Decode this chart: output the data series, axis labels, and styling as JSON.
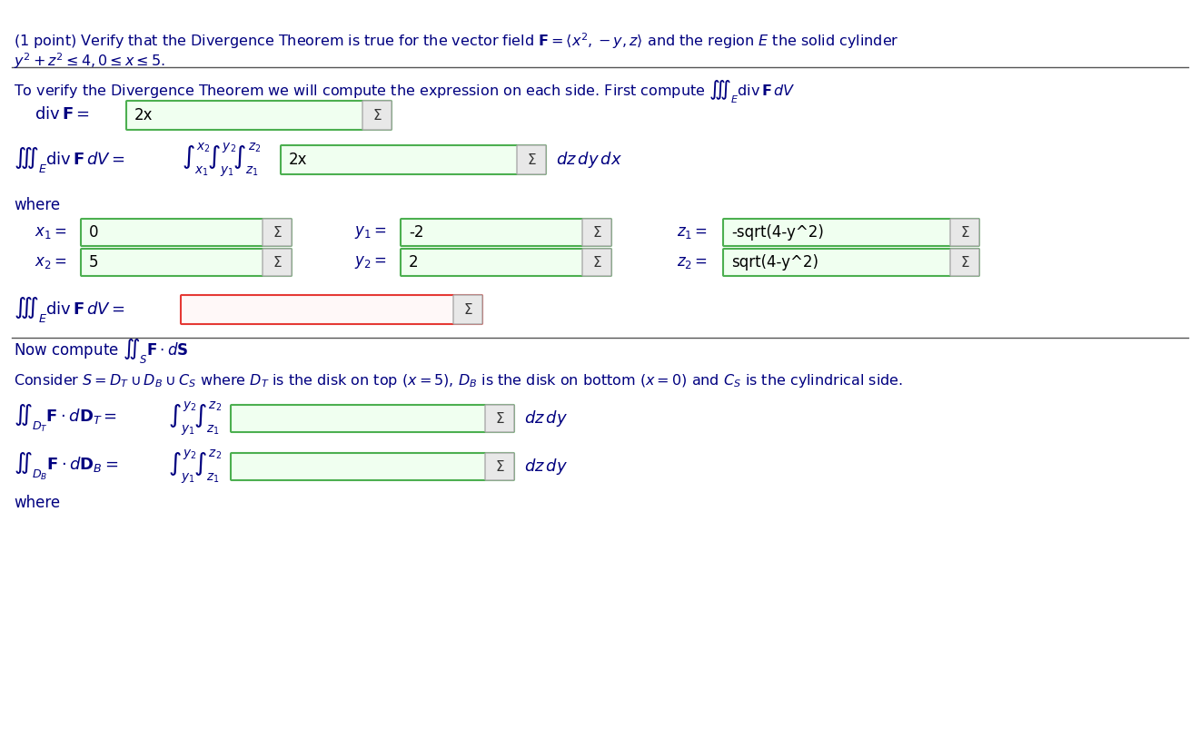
{
  "bg_color": "#ffffff",
  "title_line1": "(1 point) Verify that the Divergence Theorem is true for the vector field $\\mathbf{F} = \\langle x^2, -y, z\\rangle$ and the region $E$ the solid cylinder",
  "title_line2": "$y^2 + z^2 \\leq 4, 0 \\leq x \\leq 5$.",
  "line1": "To verify the Divergence Theorem we will compute the expression on each side. First compute $\\iiint_E \\mathrm{div}\\,\\mathbf{F}\\,dV$",
  "div_F_label": "$\\mathrm{div}\\,\\mathbf{F} =$",
  "div_F_value": "2x",
  "triple_int_label": "$\\iiint_E \\mathrm{div}\\,\\mathbf{F}\\,dV =$",
  "integral_limits": "$\\int_{x_1}^{x_2}\\int_{y_1}^{y_2}\\int_{z_1}^{z_2}$",
  "integrand": "2x",
  "measure": "$dz\\,dy\\,dx$",
  "where_text": "where",
  "x1_label": "$x_1 =$",
  "x1_val": "0",
  "y1_label": "$y_1 =$",
  "y1_val": "-2",
  "z1_label": "$z_1 =$",
  "z1_val": "-sqrt(4-y^2)",
  "x2_label": "$x_2 =$",
  "x2_val": "5",
  "y2_label": "$y_2 =$",
  "y2_val": "2",
  "z2_label": "$z_2 =$",
  "z2_val": "sqrt(4-y^2)",
  "triple_int_result_label": "$\\iiint_E \\mathrm{div}\\,\\mathbf{F}\\,dV =$",
  "triple_int_result_val": "",
  "now_compute": "Now compute $\\iint_S \\mathbf{F} \\cdot d\\mathbf{S}$",
  "consider_S": "Consider $S = D_T \\cup D_B \\cup C_S$ where $D_T$ is the disk on top $(x = 5)$, $D_B$ is the disk on bottom $(x = 0)$ and $C_S$ is the cylindrical side.",
  "DT_label": "$\\iint_{D_T} \\mathbf{F} \\cdot d\\mathbf{D}_T =$",
  "DT_limits": "$\\int_{y_1}^{y_2}\\int_{z_1}^{z_2}$",
  "DT_val": "",
  "DT_measure": "$dz\\,dy$",
  "DB_label": "$\\iint_{D_B} \\mathbf{F} \\cdot d\\mathbf{D}_B =$",
  "DB_limits": "$\\int_{y_1}^{y_2}\\int_{z_1}^{z_2}$",
  "DB_val": "",
  "DB_measure": "$dz\\,dy$",
  "where2": "where"
}
